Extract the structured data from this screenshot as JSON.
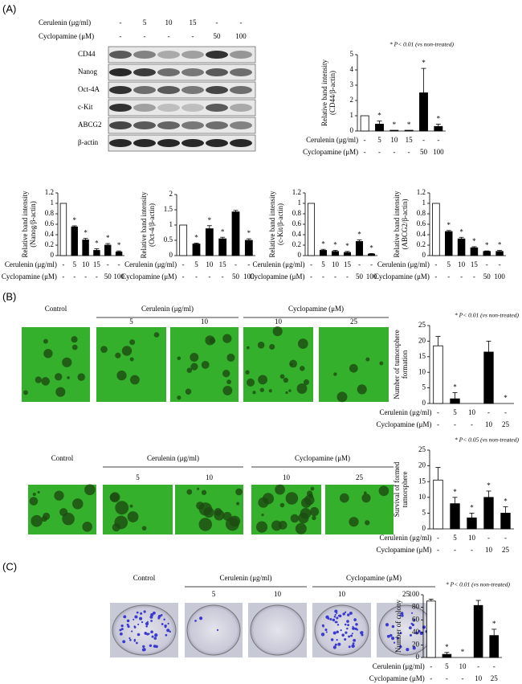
{
  "panels": [
    "(A)",
    "(B)",
    "(C)"
  ],
  "blot": {
    "treatments": [
      {
        "name": "Cerulenin (μg/ml)",
        "labels": [
          "-",
          "5",
          "10",
          "15",
          "-",
          "-"
        ]
      },
      {
        "name": "Cyclopamine (μM)",
        "labels": [
          "-",
          "-",
          "-",
          "-",
          "50",
          "100"
        ]
      }
    ],
    "bands": [
      "CD44",
      "Nanog",
      "Oct-4A",
      "c-Kit",
      "ABCG2",
      "β-actin"
    ]
  },
  "images": [
    {
      "control": "Control",
      "groups": [
        {
          "name": "Cerulenin (μg/ml)",
          "labels": [
            "5",
            "10"
          ]
        },
        {
          "name": "Cyclopamine (μM)",
          "labels": [
            "10",
            "25"
          ]
        }
      ]
    },
    {
      "control": "Control",
      "groups": [
        {
          "name": "Cerulenin (μg/ml)",
          "labels": [
            "5",
            "10"
          ]
        },
        {
          "name": "Cyclopamine (μM)",
          "labels": [
            "10",
            "25"
          ]
        }
      ]
    },
    {
      "control": "Control",
      "groups": [
        {
          "name": "Cerulenin (μg/ml)",
          "labels": [
            "5",
            "10"
          ]
        },
        {
          "name": "Cyclopamine (μM)",
          "labels": [
            "10",
            "25"
          ]
        }
      ]
    }
  ],
  "chart_data": [
    {
      "type": "bar",
      "ylabel": [
        "Relative band intensity",
        "(CD44/β-actin)"
      ],
      "annotation": "* P< 0.01 (vs non-treated)",
      "rows": [
        {
          "name": "Cerulenin (μg/ml)",
          "labels": [
            "-",
            "5",
            "10",
            "15",
            "-",
            "-"
          ]
        },
        {
          "name": "Cyclopamine (μM)",
          "labels": [
            "-",
            "-",
            "-",
            "-",
            "50",
            "100"
          ]
        }
      ],
      "values": [
        1,
        0.45,
        0.05,
        0.05,
        2.5,
        0.3
      ],
      "errors": [
        null,
        0.2,
        null,
        null,
        1.6,
        0.15
      ],
      "significance": [
        null,
        "*",
        "*",
        "*",
        "*",
        "*"
      ],
      "colors": [
        "#ffffff",
        "#000000",
        "#000000",
        "#000000",
        "#000000",
        "#000000"
      ],
      "ylim": [
        0,
        5
      ],
      "yticks": [
        0,
        1,
        2,
        3,
        4,
        5
      ]
    },
    {
      "type": "bar",
      "ylabel": [
        "Relative band intensity",
        "(Nanog/β-actin)"
      ],
      "rows": [
        {
          "name": "Cerulenin (μg/ml)",
          "labels": [
            "-",
            "5",
            "10",
            "15",
            "-",
            "-"
          ]
        },
        {
          "name": "Cyclopamine (μM)",
          "labels": [
            "-",
            "-",
            "-",
            "-",
            "50",
            "100"
          ]
        }
      ],
      "values": [
        1,
        0.55,
        0.3,
        0.1,
        0.2,
        0.07
      ],
      "errors": [
        null,
        0.02,
        0.03,
        0.03,
        0.03,
        0.02
      ],
      "significance": [
        null,
        "*",
        "*",
        "*",
        "*",
        "*"
      ],
      "colors": [
        "#ffffff",
        "#000000",
        "#000000",
        "#000000",
        "#000000",
        "#000000"
      ],
      "ylim": [
        0,
        1.2
      ],
      "yticks": [
        0,
        0.2,
        0.4,
        0.6,
        0.8,
        1,
        1.2
      ]
    },
    {
      "type": "bar",
      "ylabel": [
        "Relative band intensity",
        "(Oct-4/β-actin)"
      ],
      "rows": [
        {
          "name": "Cerulenin (μg/ml)",
          "labels": [
            "-",
            "5",
            "10",
            "15",
            "-",
            "-"
          ]
        },
        {
          "name": "Cyclopamine (μM)",
          "labels": [
            "-",
            "-",
            "-",
            "-",
            "50",
            "100"
          ]
        }
      ],
      "values": [
        1,
        0.38,
        0.88,
        0.55,
        1.43,
        0.5
      ],
      "errors": [
        null,
        0.03,
        0.1,
        0.05,
        0.05,
        0.05
      ],
      "significance": [
        null,
        "*",
        "*",
        "*",
        null,
        "*"
      ],
      "colors": [
        "#ffffff",
        "#000000",
        "#000000",
        "#000000",
        "#000000",
        "#000000"
      ],
      "ylim": [
        0,
        2
      ],
      "yticks": [
        0,
        0.5,
        1,
        1.5,
        2
      ]
    },
    {
      "type": "bar",
      "ylabel": [
        "Relative band intensity",
        "(c-Kit/β-actin)"
      ],
      "rows": [
        {
          "name": "Cerulenin (μg/ml)",
          "labels": [
            "-",
            "5",
            "10",
            "15",
            "-",
            "-"
          ]
        },
        {
          "name": "Cyclopamine (μM)",
          "labels": [
            "-",
            "-",
            "-",
            "-",
            "50",
            "100"
          ]
        }
      ],
      "values": [
        1,
        0.1,
        0.08,
        0.06,
        0.27,
        0.03
      ],
      "errors": [
        null,
        0.02,
        0.02,
        0.02,
        0.03,
        0.01
      ],
      "significance": [
        null,
        "*",
        "*",
        "*",
        "*",
        "*"
      ],
      "colors": [
        "#ffffff",
        "#000000",
        "#000000",
        "#000000",
        "#000000",
        "#000000"
      ],
      "ylim": [
        0,
        1.2
      ],
      "yticks": [
        0,
        0.2,
        0.4,
        0.6,
        0.8,
        1,
        1.2
      ]
    },
    {
      "type": "bar",
      "ylabel": [
        "Relative band intensity",
        "(ABCG2/β-actin)"
      ],
      "rows": [
        {
          "name": "Cerulenin (μg/ml)",
          "labels": [
            "-",
            "5",
            "10",
            "15",
            "-",
            "-"
          ]
        },
        {
          "name": "Cyclopamine (μM)",
          "labels": [
            "-",
            "-",
            "-",
            "-",
            "50",
            "100"
          ]
        }
      ],
      "values": [
        1,
        0.46,
        0.32,
        0.15,
        0.08,
        0.08
      ],
      "errors": [
        null,
        0.02,
        0.03,
        0.02,
        0.01,
        0.02
      ],
      "significance": [
        null,
        "*",
        "*",
        "*",
        "*",
        "*"
      ],
      "colors": [
        "#ffffff",
        "#000000",
        "#000000",
        "#000000",
        "#000000",
        "#000000"
      ],
      "ylim": [
        0,
        1.2
      ],
      "yticks": [
        0,
        0.2,
        0.4,
        0.6,
        0.8,
        1,
        1.2
      ]
    },
    {
      "type": "bar",
      "ylabel": [
        "Number of tumorsphere",
        "formation"
      ],
      "annotation": "* P< 0.01 (vs non-treated)",
      "rows": [
        {
          "name": "Cerulenin (μg/ml)",
          "labels": [
            "-",
            "5",
            "10",
            "-",
            "-"
          ]
        },
        {
          "name": "Cyclopamine (μM)",
          "labels": [
            "-",
            "-",
            "-",
            "10",
            "25"
          ]
        }
      ],
      "values": [
        18.5,
        1.5,
        0,
        16.5,
        0
      ],
      "errors": [
        3,
        2,
        null,
        3.5,
        null
      ],
      "significance": [
        null,
        "*",
        null,
        null,
        "*"
      ],
      "colors": [
        "#ffffff",
        "#000000",
        "#000000",
        "#000000",
        "#000000"
      ],
      "ylim": [
        0,
        25
      ],
      "yticks": [
        0,
        5,
        10,
        15,
        20,
        25
      ]
    },
    {
      "type": "bar",
      "ylabel": [
        "Survival of formed",
        "tumorsphere"
      ],
      "annotation": "* P< 0.05 (vs non-treated)",
      "rows": [
        {
          "name": "Cerulenin (μg/ml)",
          "labels": [
            "-",
            "5",
            "10",
            "-",
            "-"
          ]
        },
        {
          "name": "Cyclopamine (μM)",
          "labels": [
            "-",
            "-",
            "-",
            "10",
            "25"
          ]
        }
      ],
      "values": [
        15.5,
        8,
        3.5,
        10,
        5
      ],
      "errors": [
        4,
        2,
        1.5,
        2,
        2
      ],
      "significance": [
        null,
        "*",
        "*",
        "*",
        "*"
      ],
      "colors": [
        "#ffffff",
        "#000000",
        "#000000",
        "#000000",
        "#000000"
      ],
      "ylim": [
        0,
        25
      ],
      "yticks": [
        0,
        5,
        10,
        15,
        20,
        25
      ]
    },
    {
      "type": "bar",
      "ylabel": [
        "Number of colony"
      ],
      "annotation": "* P< 0.01 (vs non-treated)",
      "rows": [
        {
          "name": "Cerulenin (μg/ml)",
          "labels": [
            "-",
            "5",
            "10",
            "-",
            "-"
          ]
        },
        {
          "name": "Cyclopamine (μM)",
          "labels": [
            "-",
            "-",
            "-",
            "10",
            "25"
          ]
        }
      ],
      "values": [
        90,
        5,
        0,
        83,
        35
      ],
      "errors": [
        3,
        3,
        null,
        8,
        10
      ],
      "significance": [
        null,
        "*",
        "*",
        null,
        "*"
      ],
      "colors": [
        "#ffffff",
        "#000000",
        "#000000",
        "#000000",
        "#000000"
      ],
      "ylim": [
        0,
        100
      ],
      "yticks": [
        0,
        20,
        40,
        60,
        80,
        100
      ]
    }
  ]
}
